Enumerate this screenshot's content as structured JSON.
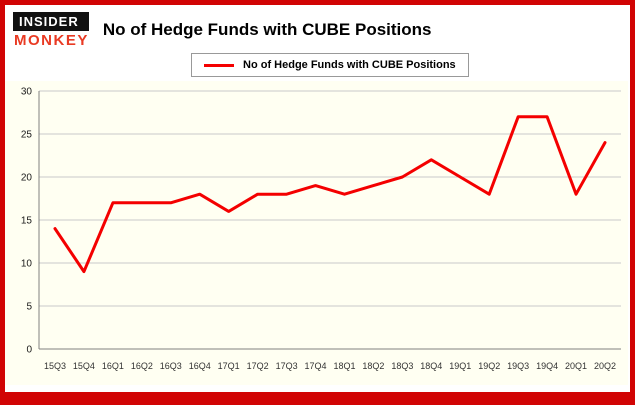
{
  "branding": {
    "insider": "INSIDER",
    "monkey": "MONKEY"
  },
  "title": "No of Hedge Funds with CUBE Positions",
  "legend": {
    "label": "No of Hedge Funds with CUBE Positions"
  },
  "colors": {
    "line": "#f40000",
    "frame": "#d10404",
    "plot_bg": "#fffff2",
    "gridline": "#c9c9c9",
    "axis": "#808080",
    "logo_red": "#e93a23"
  },
  "chart_data": {
    "type": "line",
    "title": "No of Hedge Funds with CUBE Positions",
    "legend_entries": [
      "No of Hedge Funds with CUBE Positions"
    ],
    "legend_position": "top",
    "xlabel": "",
    "ylabel": "",
    "categories": [
      "15Q3",
      "15Q4",
      "16Q1",
      "16Q2",
      "16Q3",
      "16Q4",
      "17Q1",
      "17Q2",
      "17Q3",
      "17Q4",
      "18Q1",
      "18Q2",
      "18Q3",
      "18Q4",
      "19Q1",
      "19Q2",
      "19Q3",
      "19Q4",
      "20Q1",
      "20Q2"
    ],
    "values": [
      14,
      9,
      17,
      17,
      17,
      18,
      16,
      18,
      18,
      19,
      18,
      19,
      20,
      22,
      20,
      18,
      27,
      27,
      18,
      24
    ],
    "ylim": [
      0,
      30
    ],
    "yticks": [
      0,
      5,
      10,
      15,
      20,
      25,
      30
    ],
    "grid": true
  }
}
